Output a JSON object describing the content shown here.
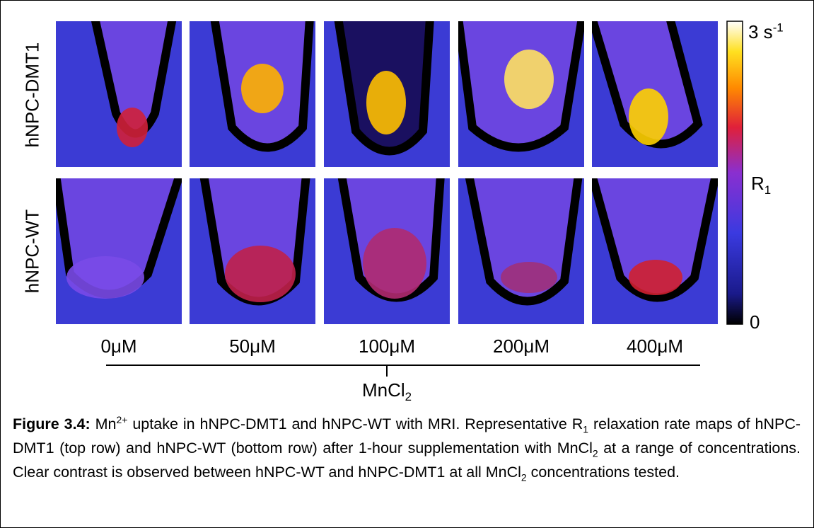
{
  "row_labels": [
    "hNPC-DMT1",
    "hNPC-WT"
  ],
  "column_labels": [
    "0μM",
    "50μM",
    "100μM",
    "200μM",
    "400μM"
  ],
  "colorbar": {
    "max_label": {
      "text": "3 s",
      "sup": "-1"
    },
    "title": {
      "text": "R",
      "sub": "1"
    },
    "min_label": "0"
  },
  "axis_label": {
    "text": "MnCl",
    "sub": "2"
  },
  "caption": {
    "label": "Figure 3.4:",
    "parts": [
      " Mn",
      "2+",
      " uptake in hNPC-DMT1 and hNPC-WT with MRI. Representative R",
      "1",
      " relaxation rate maps of hNPC-DMT1 (top row) and hNPC-WT (bottom row) after 1-hour supplementation with MnCl",
      "2",
      " at a range of concentrations. Clear contrast is observed between hNPC-WT and hNPC-DMT1 at all MnCl",
      "2",
      " concentrations tested."
    ]
  }
}
